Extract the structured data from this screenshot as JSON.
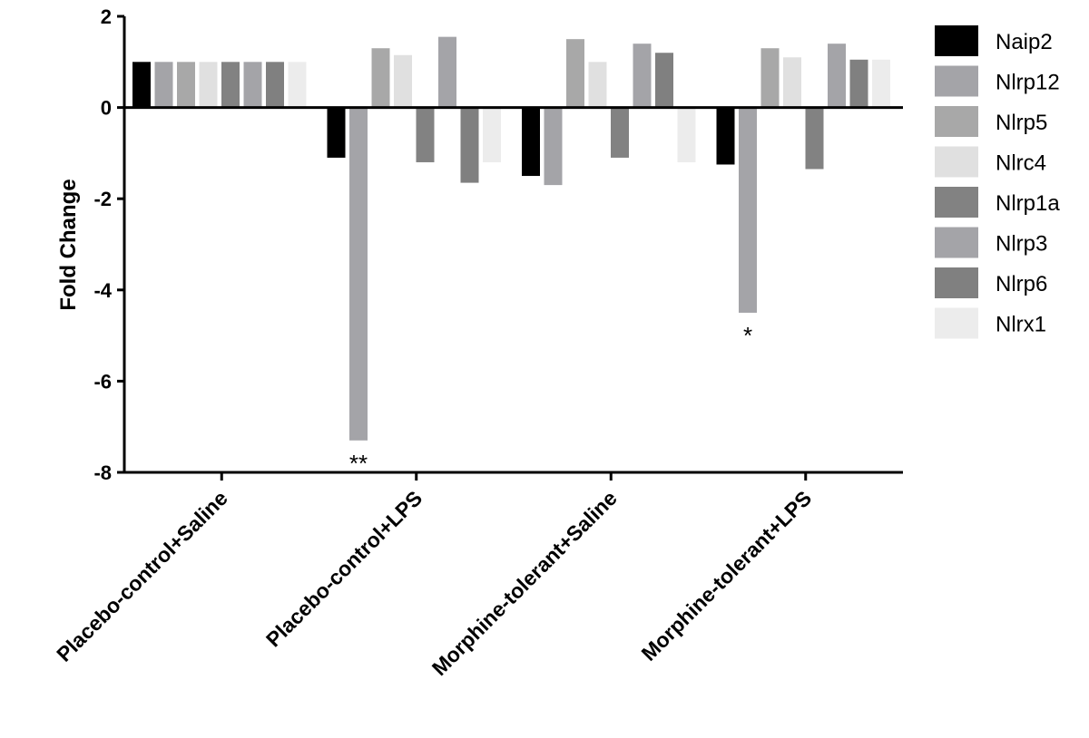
{
  "chart_data": {
    "type": "bar",
    "title": "",
    "xlabel": "",
    "ylabel": "Fold Change",
    "ylim": [
      -8,
      2
    ],
    "yticks": [
      "2",
      "0",
      "-2",
      "-4",
      "-6",
      "-8"
    ],
    "categories": [
      "Placebo-control+Saline",
      "Placebo-control+LPS",
      "Morphine-tolerant+Saline",
      "Morphine-tolerant+LPS"
    ],
    "series": [
      {
        "name": "Naip2",
        "color": "#000000",
        "values": [
          1.0,
          -1.1,
          -1.5,
          -1.25
        ]
      },
      {
        "name": "Nlrp12",
        "color": "#a4a4a8",
        "values": [
          1.0,
          -7.3,
          -1.7,
          -4.5
        ]
      },
      {
        "name": "Nlrp5",
        "color": "#a8a8a8",
        "values": [
          1.0,
          1.3,
          1.5,
          1.3
        ]
      },
      {
        "name": "Nlrc4",
        "color": "#e0e0e0",
        "values": [
          1.0,
          1.15,
          1.0,
          1.1
        ]
      },
      {
        "name": "Nlrp1a",
        "color": "#828282",
        "values": [
          1.0,
          -1.2,
          -1.1,
          -1.35
        ]
      },
      {
        "name": "Nlrp3",
        "color": "#a4a4a8",
        "values": [
          1.0,
          1.55,
          1.4,
          1.4
        ]
      },
      {
        "name": "Nlrp6",
        "color": "#808080",
        "values": [
          1.0,
          -1.65,
          1.2,
          1.05
        ]
      },
      {
        "name": "Nlrx1",
        "color": "#ececec",
        "values": [
          1.0,
          -1.2,
          -1.2,
          1.05
        ]
      }
    ],
    "annotations": [
      {
        "category_index": 1,
        "series_index": 1,
        "text": "**"
      },
      {
        "category_index": 3,
        "series_index": 1,
        "text": "*"
      }
    ],
    "legend_position": "right"
  }
}
